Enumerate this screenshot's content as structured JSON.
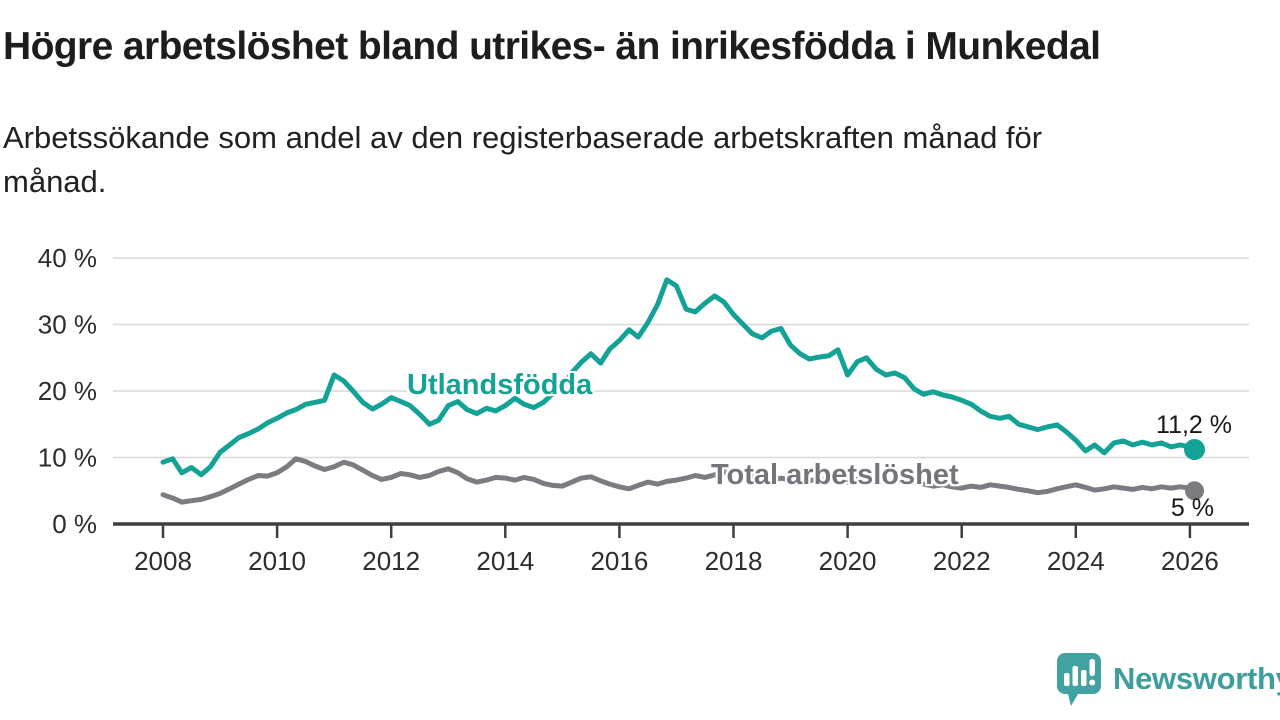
{
  "header": {
    "title": "Högre arbetslöshet bland utrikes- än inrikesfödda i Munkedal",
    "subtitle": "Arbetssökande som andel av den registerbaserade arbetskraften månad för\nmånad."
  },
  "chart": {
    "series_labels": {
      "foreign_born": "Utlandsfödda",
      "total": "Total arbetslöshet"
    },
    "end_labels": {
      "foreign_born": "11,2 %",
      "total": "5 %"
    },
    "colors": {
      "foreign_born_line": "#13a295",
      "total_line": "#7c7b82",
      "total_label_text": "#75747c",
      "axis": "#3f3f3f",
      "grid": "#d8d8d8",
      "tick_text": "#2d2d2d"
    }
  },
  "chart_data": {
    "type": "line",
    "title": "Högre arbetslöshet bland utrikes- än inrikesfödda i Munkedal",
    "xlabel": "",
    "ylabel": "",
    "ylim": [
      0,
      40
    ],
    "xlim": [
      2007.1,
      2027.05
    ],
    "grid": "horizontal-only",
    "legend": "inline-labels-on-chart",
    "y_ticks": [
      {
        "value": 0,
        "label": "0 %"
      },
      {
        "value": 10,
        "label": "10 %"
      },
      {
        "value": 20,
        "label": "20 %"
      },
      {
        "value": 30,
        "label": "30 %"
      },
      {
        "value": 40,
        "label": "40 %"
      }
    ],
    "x_ticks": [
      {
        "value": 2008,
        "label": "2008"
      },
      {
        "value": 2010,
        "label": "2010"
      },
      {
        "value": 2012,
        "label": "2012"
      },
      {
        "value": 2014,
        "label": "2014"
      },
      {
        "value": 2016,
        "label": "2016"
      },
      {
        "value": 2018,
        "label": "2018"
      },
      {
        "value": 2020,
        "label": "2020"
      },
      {
        "value": 2022,
        "label": "2022"
      },
      {
        "value": 2024,
        "label": "2024"
      },
      {
        "value": 2026,
        "label": "2026"
      }
    ],
    "x": [
      2008,
      2008.17,
      2008.33,
      2008.5,
      2008.67,
      2008.83,
      2009,
      2009.17,
      2009.33,
      2009.5,
      2009.67,
      2009.83,
      2010,
      2010.17,
      2010.33,
      2010.5,
      2010.67,
      2010.83,
      2011,
      2011.17,
      2011.33,
      2011.5,
      2011.67,
      2011.83,
      2012,
      2012.17,
      2012.33,
      2012.5,
      2012.67,
      2012.83,
      2013,
      2013.17,
      2013.33,
      2013.5,
      2013.67,
      2013.83,
      2014,
      2014.17,
      2014.33,
      2014.5,
      2014.67,
      2014.83,
      2015,
      2015.17,
      2015.33,
      2015.5,
      2015.67,
      2015.83,
      2016,
      2016.17,
      2016.33,
      2016.5,
      2016.67,
      2016.83,
      2017,
      2017.17,
      2017.33,
      2017.5,
      2017.67,
      2017.83,
      2018,
      2018.17,
      2018.33,
      2018.5,
      2018.67,
      2018.83,
      2019,
      2019.17,
      2019.33,
      2019.5,
      2019.67,
      2019.83,
      2020,
      2020.17,
      2020.33,
      2020.5,
      2020.67,
      2020.83,
      2021,
      2021.17,
      2021.33,
      2021.5,
      2021.67,
      2021.83,
      2022,
      2022.17,
      2022.33,
      2022.5,
      2022.67,
      2022.83,
      2023,
      2023.17,
      2023.33,
      2023.5,
      2023.67,
      2023.83,
      2024,
      2024.17,
      2024.33,
      2024.5,
      2024.67,
      2024.83,
      2025,
      2025.17,
      2025.33,
      2025.5,
      2025.67,
      2025.83,
      2026,
      2026.08
    ],
    "series": [
      {
        "name": "Utlandsfödda",
        "color": "#13a295",
        "end_value": 11.2,
        "end_value_label": "11,2 %",
        "values": [
          9.3,
          9.8,
          7.7,
          8.5,
          7.4,
          8.6,
          10.8,
          11.9,
          13.0,
          13.6,
          14.3,
          15.2,
          15.9,
          16.7,
          17.2,
          18.0,
          18.3,
          18.6,
          22.4,
          21.5,
          20.0,
          18.3,
          17.3,
          18.0,
          19.0,
          18.4,
          17.8,
          16.5,
          15.0,
          15.6,
          17.8,
          18.4,
          17.2,
          16.6,
          17.4,
          17.0,
          17.8,
          18.9,
          18.0,
          17.5,
          18.3,
          19.6,
          20.5,
          22.8,
          24.3,
          25.6,
          24.2,
          26.3,
          27.6,
          29.2,
          28.1,
          30.3,
          33.0,
          36.7,
          35.8,
          32.3,
          31.9,
          33.2,
          34.3,
          33.4,
          31.5,
          30.0,
          28.6,
          28.0,
          29.0,
          29.4,
          26.9,
          25.6,
          24.8,
          25.1,
          25.3,
          26.2,
          22.4,
          24.4,
          25.0,
          23.3,
          22.4,
          22.7,
          22.0,
          20.3,
          19.5,
          19.9,
          19.4,
          19.1,
          18.6,
          18.0,
          17.0,
          16.2,
          15.9,
          16.2,
          15.0,
          14.6,
          14.2,
          14.6,
          14.9,
          13.9,
          12.6,
          11.0,
          11.9,
          10.7,
          12.2,
          12.5,
          11.9,
          12.3,
          11.9,
          12.2,
          11.6,
          11.9,
          11.6,
          11.2
        ]
      },
      {
        "name": "Total arbetslöshet",
        "color": "#7c7b82",
        "end_value": 5.0,
        "end_value_label": "5 %",
        "values": [
          4.4,
          3.9,
          3.3,
          3.5,
          3.7,
          4.1,
          4.6,
          5.3,
          6.0,
          6.7,
          7.3,
          7.2,
          7.7,
          8.6,
          9.8,
          9.4,
          8.7,
          8.2,
          8.6,
          9.3,
          8.9,
          8.1,
          7.3,
          6.7,
          7.0,
          7.6,
          7.4,
          7.0,
          7.3,
          7.9,
          8.3,
          7.7,
          6.8,
          6.3,
          6.6,
          7.0,
          6.9,
          6.6,
          7.0,
          6.7,
          6.1,
          5.8,
          5.7,
          6.3,
          6.9,
          7.1,
          6.5,
          6.0,
          5.6,
          5.3,
          5.8,
          6.3,
          6.0,
          6.4,
          6.6,
          6.9,
          7.3,
          7.0,
          7.4,
          7.8,
          8.0,
          7.6,
          7.1,
          6.8,
          6.5,
          6.9,
          6.6,
          6.2,
          6.5,
          6.8,
          6.4,
          6.6,
          6.3,
          6.7,
          7.0,
          6.6,
          6.3,
          6.5,
          6.2,
          6.4,
          6.0,
          5.7,
          5.9,
          5.6,
          5.4,
          5.7,
          5.5,
          5.9,
          5.7,
          5.5,
          5.2,
          5.0,
          4.7,
          4.9,
          5.3,
          5.6,
          5.9,
          5.5,
          5.1,
          5.3,
          5.6,
          5.4,
          5.2,
          5.5,
          5.3,
          5.6,
          5.4,
          5.6,
          5.4,
          5.0
        ]
      }
    ]
  },
  "footer": {
    "brand": "Newsworthy",
    "brand_color": "#3e9e9e"
  }
}
